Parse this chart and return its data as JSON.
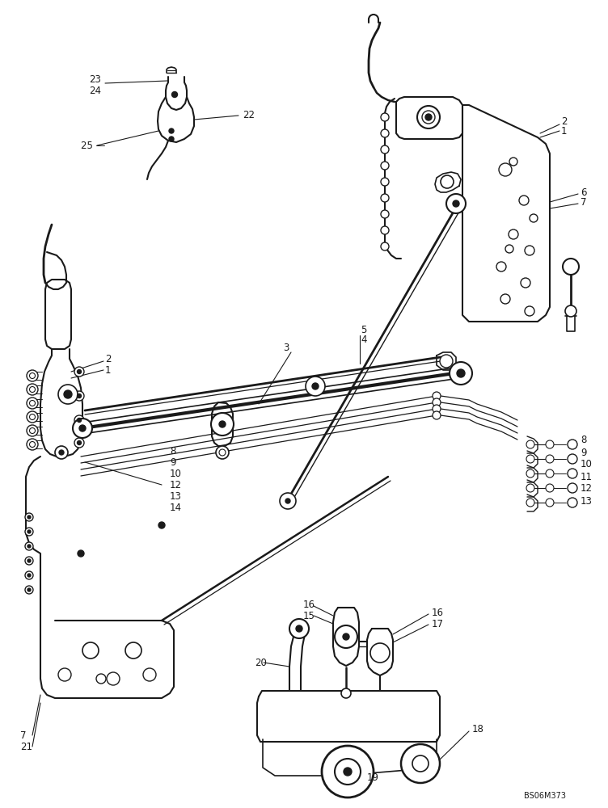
{
  "background_color": "#ffffff",
  "image_id": "BS06M373",
  "figure_size": [
    7.52,
    10.0
  ],
  "dpi": 100,
  "image_ref_text": "BS06M373"
}
